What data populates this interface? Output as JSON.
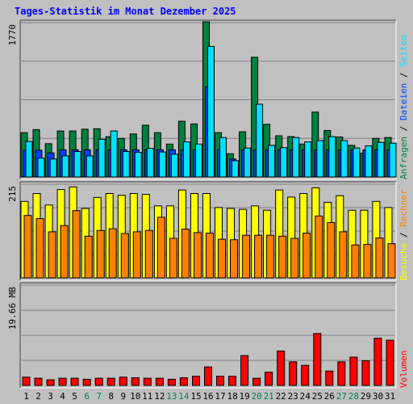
{
  "title": "Tages-Statistik im Monat Dezember 2025",
  "colors": {
    "background": "#c0c0c0",
    "panel": "#c0c0c0",
    "grid": "#808080",
    "title": "#0000ff",
    "anfragen": "#008040",
    "dateien": "#0040ff",
    "seiten": "#00e0ff",
    "besuche": "#ffff00",
    "rechner": "#ff8000",
    "volumen": "#ff0000",
    "weekend": "#00805c",
    "weekday": "#000000"
  },
  "chart_data": [
    {
      "type": "bar",
      "name": "top",
      "ymax_label": "1770",
      "ylim": [
        0,
        1770
      ],
      "grid": true,
      "right_label": [
        {
          "text": "Anfragen",
          "color_key": "anfragen"
        },
        {
          "text": "Dateien",
          "color_key": "dateien"
        },
        {
          "text": "Seiten",
          "color_key": "seiten"
        }
      ],
      "categories": [
        "1",
        "2",
        "3",
        "4",
        "5",
        "6",
        "7",
        "8",
        "9",
        "10",
        "11",
        "12",
        "13",
        "14",
        "15",
        "16",
        "17",
        "18",
        "19",
        "20",
        "21",
        "22",
        "23",
        "24",
        "25",
        "26",
        "27",
        "28",
        "29",
        "30",
        "31"
      ],
      "series": [
        {
          "name": "Anfragen",
          "color_key": "anfragen",
          "values": [
            505,
            540,
            380,
            525,
            525,
            545,
            550,
            460,
            440,
            490,
            590,
            505,
            375,
            635,
            605,
            1770,
            505,
            265,
            515,
            1365,
            600,
            470,
            460,
            375,
            740,
            530,
            455,
            360,
            270,
            440,
            450
          ]
        },
        {
          "name": "Dateien",
          "color_key": "dateien",
          "values": [
            305,
            305,
            275,
            310,
            310,
            310,
            310,
            310,
            310,
            310,
            310,
            310,
            310,
            310,
            310,
            1030,
            310,
            205,
            310,
            310,
            310,
            310,
            310,
            310,
            310,
            310,
            310,
            310,
            310,
            310,
            310
          ]
        },
        {
          "name": "Seiten",
          "color_key": "seiten",
          "values": [
            405,
            215,
            205,
            240,
            290,
            240,
            430,
            525,
            290,
            280,
            325,
            285,
            260,
            400,
            375,
            1490,
            450,
            185,
            330,
            830,
            360,
            335,
            450,
            400,
            415,
            460,
            415,
            330,
            355,
            395,
            385
          ]
        }
      ]
    },
    {
      "type": "bar",
      "name": "middle",
      "ymax_label": "215",
      "ylim": [
        0,
        215
      ],
      "grid": true,
      "right_label": [
        {
          "text": "Besuche",
          "color_key": "besuche"
        },
        {
          "text": "Rechner",
          "color_key": "rechner"
        }
      ],
      "categories": [
        "1",
        "2",
        "3",
        "4",
        "5",
        "6",
        "7",
        "8",
        "9",
        "10",
        "11",
        "12",
        "13",
        "14",
        "15",
        "16",
        "17",
        "18",
        "19",
        "20",
        "21",
        "22",
        "23",
        "24",
        "25",
        "26",
        "27",
        "28",
        "29",
        "30",
        "31"
      ],
      "series": [
        {
          "name": "Besuche",
          "color_key": "besuche",
          "values": [
            174,
            192,
            166,
            201,
            207,
            158,
            183,
            192,
            188,
            192,
            190,
            164,
            164,
            200,
            192,
            192,
            160,
            158,
            156,
            164,
            154,
            200,
            184,
            192,
            205,
            172,
            187,
            154,
            154,
            174,
            160
          ]
        },
        {
          "name": "Rechner",
          "color_key": "rechner",
          "values": [
            142,
            135,
            105,
            119,
            153,
            95,
            108,
            112,
            101,
            105,
            108,
            138,
            90,
            111,
            103,
            102,
            88,
            87,
            97,
            97,
            97,
            95,
            90,
            102,
            141,
            126,
            105,
            75,
            76,
            91,
            78
          ]
        }
      ]
    },
    {
      "type": "bar",
      "name": "bottom",
      "ymax_label": "19.66 MB",
      "ylim": [
        0,
        19.66
      ],
      "grid": true,
      "right_label": [
        {
          "text": "Volumen",
          "color_key": "volumen"
        }
      ],
      "categories": [
        "1",
        "2",
        "3",
        "4",
        "5",
        "6",
        "7",
        "8",
        "9",
        "10",
        "11",
        "12",
        "13",
        "14",
        "15",
        "16",
        "17",
        "18",
        "19",
        "20",
        "21",
        "22",
        "23",
        "24",
        "25",
        "26",
        "27",
        "28",
        "29",
        "30",
        "31"
      ],
      "series": [
        {
          "name": "Volumen",
          "color_key": "volumen",
          "values": [
            1.6,
            1.4,
            1.1,
            1.4,
            1.4,
            1.2,
            1.4,
            1.4,
            1.6,
            1.5,
            1.4,
            1.4,
            1.2,
            1.5,
            1.8,
            3.6,
            1.8,
            1.8,
            5.8,
            1.4,
            2.6,
            6.7,
            4.6,
            3.9,
            10.1,
            2.8,
            4.6,
            5.5,
            4.8,
            9.2,
            8.8
          ]
        }
      ]
    }
  ],
  "x_labels": [
    {
      "text": "1",
      "weekend": false
    },
    {
      "text": "2",
      "weekend": false
    },
    {
      "text": "3",
      "weekend": false
    },
    {
      "text": "4",
      "weekend": false
    },
    {
      "text": "5",
      "weekend": false
    },
    {
      "text": "6",
      "weekend": true
    },
    {
      "text": "7",
      "weekend": true
    },
    {
      "text": "8",
      "weekend": false
    },
    {
      "text": "9",
      "weekend": false
    },
    {
      "text": "10",
      "weekend": false
    },
    {
      "text": "11",
      "weekend": false
    },
    {
      "text": "12",
      "weekend": false
    },
    {
      "text": "13",
      "weekend": true
    },
    {
      "text": "14",
      "weekend": true
    },
    {
      "text": "15",
      "weekend": false
    },
    {
      "text": "16",
      "weekend": false
    },
    {
      "text": "17",
      "weekend": false
    },
    {
      "text": "18",
      "weekend": false
    },
    {
      "text": "19",
      "weekend": false
    },
    {
      "text": "20",
      "weekend": true
    },
    {
      "text": "21",
      "weekend": true
    },
    {
      "text": "22",
      "weekend": false
    },
    {
      "text": "23",
      "weekend": false
    },
    {
      "text": "24",
      "weekend": false
    },
    {
      "text": "25",
      "weekend": false
    },
    {
      "text": "26",
      "weekend": false
    },
    {
      "text": "27",
      "weekend": true
    },
    {
      "text": "28",
      "weekend": true
    },
    {
      "text": "29",
      "weekend": false
    },
    {
      "text": "30",
      "weekend": false
    },
    {
      "text": "31",
      "weekend": false
    }
  ]
}
